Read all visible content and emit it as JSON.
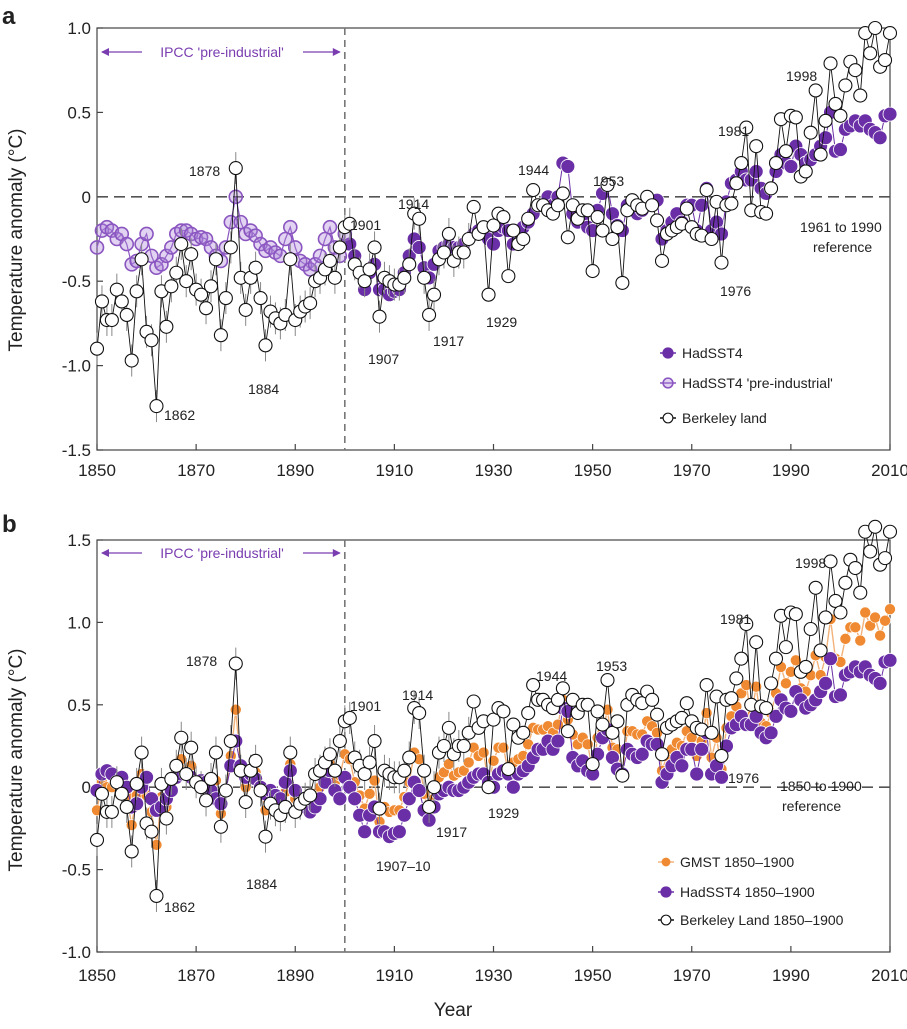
{
  "colors": {
    "hadsst": "#6a2fa6",
    "hadsst_pre": "#8a55c0",
    "berkeley": "#000000",
    "gmst": "#ef8a32",
    "ipcc": "#7a3db0"
  },
  "chart_data": [
    {
      "panel": "a",
      "type": "line",
      "xlabel": "",
      "ylabel": "Temperature anomaly (°C)",
      "xlim": [
        1850,
        2010
      ],
      "ylim": [
        -1.5,
        1.0
      ],
      "xticks": [
        "1850",
        "1870",
        "1890",
        "1910",
        "1930",
        "1950",
        "1970",
        "1990",
        "2010"
      ],
      "yticks": [
        "-1.5",
        "-1.0",
        "-0.5",
        "0",
        "0.5",
        "1.0"
      ],
      "grid": false,
      "legend_position": "bottom-right",
      "ipcc_label": "IPCC 'pre-industrial'",
      "reference_label": [
        "1961 to 1990",
        "reference"
      ],
      "annotations": [
        "1878",
        "1862",
        "1884",
        "1901",
        "1907",
        "1914",
        "1917",
        "1929",
        "1944",
        "1953",
        "1976",
        "1981",
        "1998"
      ],
      "series": [
        {
          "name": "HadSST4",
          "marker": "filled",
          "x_start": 1901,
          "values": [
            -0.28,
            -0.35,
            -0.45,
            -0.55,
            -0.45,
            -0.4,
            -0.55,
            -0.55,
            -0.58,
            -0.56,
            -0.55,
            -0.45,
            -0.35,
            -0.25,
            -0.3,
            -0.42,
            -0.48,
            -0.4,
            -0.32,
            -0.3,
            -0.28,
            -0.3,
            -0.3,
            -0.28,
            -0.25,
            -0.22,
            -0.2,
            -0.2,
            -0.25,
            -0.28,
            -0.2,
            -0.18,
            -0.2,
            -0.28,
            -0.2,
            -0.18,
            -0.15,
            -0.1,
            -0.05,
            -0.05,
            0.0,
            -0.05,
            0.0,
            0.2,
            0.18,
            -0.1,
            -0.15,
            -0.12,
            -0.18,
            -0.2,
            -0.08,
            0.02,
            0.07,
            -0.1,
            -0.17,
            -0.2,
            -0.05,
            -0.08,
            -0.1,
            -0.08,
            0.0,
            -0.02,
            -0.02,
            -0.25,
            -0.2,
            -0.15,
            -0.1,
            -0.15,
            -0.05,
            -0.05,
            -0.2,
            -0.05,
            0.05,
            -0.2,
            -0.15,
            -0.22,
            -0.03,
            0.08,
            0.1,
            0.15,
            0.1,
            0.1,
            0.15,
            0.05,
            0.02,
            0.05,
            0.15,
            0.25,
            0.2,
            0.18,
            0.3,
            0.25,
            0.2,
            0.22,
            0.25,
            0.3,
            0.35,
            0.5,
            0.27,
            0.28,
            0.4,
            0.42,
            0.45,
            0.42,
            0.45,
            0.4,
            0.38,
            0.35,
            0.48,
            0.49
          ]
        },
        {
          "name": "HadSST4 'pre-industrial'",
          "marker": "open",
          "x_start": 1850,
          "values": [
            -0.3,
            -0.2,
            -0.18,
            -0.2,
            -0.25,
            -0.22,
            -0.28,
            -0.4,
            -0.38,
            -0.28,
            -0.22,
            -0.35,
            -0.42,
            -0.4,
            -0.35,
            -0.3,
            -0.22,
            -0.2,
            -0.2,
            -0.22,
            -0.25,
            -0.24,
            -0.25,
            -0.3,
            -0.35,
            -0.38,
            -0.3,
            -0.15,
            0.0,
            -0.15,
            -0.22,
            -0.2,
            -0.23,
            -0.28,
            -0.32,
            -0.3,
            -0.33,
            -0.35,
            -0.25,
            -0.18,
            -0.3,
            -0.38,
            -0.4,
            -0.43,
            -0.4,
            -0.35,
            -0.25,
            -0.18,
            -0.3,
            -0.35,
            -0.22
          ]
        },
        {
          "name": "Berkeley land",
          "marker": "white",
          "x_start": 1850,
          "values": [
            -0.9,
            -0.62,
            -0.73,
            -0.73,
            -0.55,
            -0.62,
            -0.7,
            -0.97,
            -0.56,
            -0.37,
            -0.8,
            -0.85,
            -1.24,
            -0.56,
            -0.77,
            -0.53,
            -0.45,
            -0.28,
            -0.5,
            -0.34,
            -0.55,
            -0.58,
            -0.66,
            -0.53,
            -0.37,
            -0.82,
            -0.6,
            -0.3,
            0.17,
            -0.48,
            -0.67,
            -0.48,
            -0.42,
            -0.6,
            -0.88,
            -0.68,
            -0.72,
            -0.75,
            -0.7,
            -0.37,
            -0.73,
            -0.68,
            -0.65,
            -0.63,
            -0.5,
            -0.48,
            -0.43,
            -0.38,
            -0.48,
            -0.3,
            -0.18,
            -0.16,
            -0.4,
            -0.45,
            -0.5,
            -0.43,
            -0.3,
            -0.71,
            -0.48,
            -0.5,
            -0.52,
            -0.52,
            -0.48,
            -0.4,
            -0.1,
            -0.13,
            -0.48,
            -0.7,
            -0.58,
            -0.37,
            -0.33,
            -0.22,
            -0.38,
            -0.33,
            -0.33,
            -0.25,
            -0.06,
            -0.22,
            -0.18,
            -0.58,
            -0.17,
            -0.1,
            -0.12,
            -0.47,
            -0.2,
            -0.28,
            -0.25,
            -0.13,
            0.04,
            -0.05,
            -0.05,
            -0.08,
            -0.1,
            -0.05,
            0.02,
            -0.24,
            -0.05,
            -0.13,
            -0.08,
            -0.08,
            -0.44,
            -0.12,
            -0.2,
            0.07,
            -0.25,
            -0.18,
            -0.51,
            -0.08,
            -0.02,
            -0.05,
            -0.07,
            0.0,
            -0.05,
            -0.14,
            -0.38,
            -0.22,
            -0.2,
            -0.18,
            -0.16,
            -0.07,
            -0.18,
            -0.22,
            -0.23,
            0.04,
            -0.25,
            -0.03,
            -0.39,
            -0.05,
            -0.04,
            0.08,
            0.2,
            0.41,
            -0.08,
            0.3,
            -0.09,
            -0.1,
            0.05,
            0.2,
            0.46,
            0.27,
            0.48,
            0.47,
            0.12,
            0.15,
            0.38,
            0.63,
            0.25,
            0.45,
            0.79,
            0.55,
            0.48,
            0.66,
            0.8,
            0.75,
            0.6,
            0.97,
            0.85,
            1.0,
            0.77,
            0.81,
            0.97
          ]
        }
      ]
    },
    {
      "panel": "b",
      "type": "line",
      "xlabel": "Year",
      "ylabel": "Temperature anomaly (°C)",
      "xlim": [
        1850,
        2010
      ],
      "ylim": [
        -1.0,
        1.5
      ],
      "xticks": [
        "1850",
        "1870",
        "1890",
        "1910",
        "1930",
        "1950",
        "1970",
        "1990",
        "2010"
      ],
      "yticks": [
        "-1.0",
        "-0.5",
        "0",
        "0.5",
        "1.0",
        "1.5"
      ],
      "grid": false,
      "legend_position": "bottom-right",
      "ipcc_label": "IPCC 'pre-industrial'",
      "reference_label": [
        "1850 to 1900",
        "reference"
      ],
      "annotations": [
        "1878",
        "1862",
        "1884",
        "1901",
        "1907–10",
        "1914",
        "1917",
        "1929",
        "1944",
        "1953",
        "1976",
        "1981",
        "1998"
      ],
      "series": [
        {
          "name": "GMST 1850–1900",
          "marker": "orange",
          "x_start": 1850,
          "values": [
            -0.14,
            0.03,
            0.0,
            0.0,
            0.03,
            0.02,
            -0.05,
            -0.23,
            -0.05,
            0.08,
            -0.05,
            -0.15,
            -0.35,
            -0.06,
            -0.12,
            0.01,
            0.09,
            0.17,
            0.08,
            0.13,
            0.03,
            0.02,
            -0.01,
            0.01,
            0.04,
            -0.16,
            -0.02,
            0.19,
            0.47,
            0.12,
            0.0,
            0.09,
            0.09,
            -0.01,
            -0.14,
            -0.05,
            -0.09,
            -0.11,
            -0.03,
            0.14,
            -0.07,
            -0.1,
            -0.1,
            -0.11,
            -0.04,
            0.0,
            0.08,
            0.14,
            0.03,
            0.07,
            0.2,
            0.17,
            0.03,
            -0.05,
            -0.13,
            -0.04,
            0.04,
            -0.21,
            -0.12,
            -0.15,
            -0.14,
            -0.14,
            -0.06,
            0.03,
            0.21,
            0.17,
            -0.04,
            -0.17,
            -0.07,
            0.06,
            0.09,
            0.14,
            0.07,
            0.09,
            0.1,
            0.15,
            0.24,
            0.19,
            0.21,
            0.02,
            0.16,
            0.24,
            0.24,
            0.09,
            0.15,
            0.17,
            0.19,
            0.26,
            0.36,
            0.35,
            0.35,
            0.37,
            0.33,
            0.38,
            0.53,
            0.41,
            0.32,
            0.26,
            0.3,
            0.26,
            0.1,
            0.3,
            0.33,
            0.47,
            0.24,
            0.23,
            0.08,
            0.34,
            0.34,
            0.32,
            0.32,
            0.4,
            0.37,
            0.33,
            0.1,
            0.19,
            0.23,
            0.27,
            0.25,
            0.34,
            0.3,
            0.19,
            0.28,
            0.45,
            0.18,
            0.3,
            0.11,
            0.36,
            0.43,
            0.49,
            0.57,
            0.62,
            0.43,
            0.61,
            0.39,
            0.37,
            0.45,
            0.57,
            0.73,
            0.63,
            0.7,
            0.77,
            0.6,
            0.58,
            0.68,
            0.8,
            0.68,
            0.79,
            1.02,
            0.78,
            0.76,
            0.9,
            0.97,
            0.97,
            0.89,
            1.06,
            0.98,
            1.03,
            0.92,
            1.01,
            1.08
          ]
        },
        {
          "name": "HadSST4 1850–1900",
          "marker": "filled",
          "x_start": 1850,
          "values": [
            -0.02,
            0.08,
            0.1,
            0.08,
            0.03,
            0.06,
            0.0,
            -0.12,
            -0.1,
            0.0,
            0.06,
            -0.07,
            -0.14,
            -0.12,
            -0.07,
            -0.02,
            0.06,
            0.08,
            0.08,
            0.06,
            0.03,
            0.04,
            0.03,
            -0.02,
            -0.07,
            -0.1,
            -0.02,
            0.13,
            0.28,
            0.13,
            0.06,
            0.08,
            0.05,
            0.0,
            -0.04,
            -0.02,
            -0.05,
            -0.07,
            0.03,
            0.1,
            -0.02,
            -0.1,
            -0.12,
            -0.15,
            -0.12,
            -0.07,
            0.03,
            0.1,
            -0.02,
            -0.07,
            0.06,
            0.0,
            -0.07,
            -0.17,
            -0.27,
            -0.17,
            -0.12,
            -0.27,
            -0.27,
            -0.3,
            -0.28,
            -0.27,
            -0.17,
            -0.07,
            0.03,
            -0.02,
            -0.14,
            -0.2,
            -0.12,
            -0.04,
            -0.02,
            0.0,
            -0.02,
            -0.02,
            0.0,
            0.03,
            0.06,
            0.08,
            0.08,
            0.03,
            0.0,
            0.08,
            0.1,
            0.08,
            0.0,
            0.08,
            0.1,
            0.13,
            0.18,
            0.23,
            0.23,
            0.28,
            0.23,
            0.28,
            0.48,
            0.46,
            0.18,
            0.13,
            0.16,
            0.1,
            0.08,
            0.2,
            0.3,
            0.35,
            0.18,
            0.11,
            0.08,
            0.23,
            0.2,
            0.18,
            0.2,
            0.28,
            0.26,
            0.26,
            0.03,
            0.08,
            0.13,
            0.18,
            0.13,
            0.23,
            0.23,
            0.08,
            0.23,
            0.33,
            0.08,
            0.13,
            0.06,
            0.25,
            0.36,
            0.38,
            0.43,
            0.38,
            0.38,
            0.43,
            0.33,
            0.3,
            0.33,
            0.43,
            0.53,
            0.48,
            0.46,
            0.58,
            0.53,
            0.48,
            0.5,
            0.53,
            0.58,
            0.63,
            0.78,
            0.55,
            0.56,
            0.68,
            0.7,
            0.73,
            0.7,
            0.73,
            0.68,
            0.66,
            0.63,
            0.76,
            0.77
          ]
        },
        {
          "name": "Berkeley Land 1850–1900",
          "marker": "white",
          "x_start": 1850,
          "values": [
            -0.32,
            -0.04,
            -0.15,
            -0.15,
            0.03,
            -0.04,
            -0.12,
            -0.39,
            0.02,
            0.21,
            -0.22,
            -0.27,
            -0.66,
            0.02,
            -0.19,
            0.05,
            0.13,
            0.3,
            0.08,
            0.24,
            0.03,
            0.0,
            -0.08,
            0.05,
            0.21,
            -0.24,
            -0.02,
            0.28,
            0.75,
            0.1,
            -0.09,
            0.1,
            0.16,
            -0.02,
            -0.3,
            -0.1,
            -0.14,
            -0.17,
            -0.12,
            0.21,
            -0.15,
            -0.1,
            -0.07,
            -0.05,
            0.08,
            0.1,
            0.15,
            0.2,
            0.1,
            0.28,
            0.4,
            0.42,
            0.18,
            0.13,
            0.08,
            0.15,
            0.28,
            -0.13,
            0.1,
            0.08,
            0.06,
            0.06,
            0.1,
            0.18,
            0.48,
            0.45,
            0.1,
            -0.12,
            0.0,
            0.21,
            0.25,
            0.36,
            0.2,
            0.25,
            0.25,
            0.33,
            0.52,
            0.36,
            0.4,
            0.0,
            0.41,
            0.48,
            0.46,
            0.11,
            0.38,
            0.3,
            0.33,
            0.45,
            0.62,
            0.53,
            0.53,
            0.5,
            0.48,
            0.53,
            0.6,
            0.34,
            0.53,
            0.45,
            0.5,
            0.5,
            0.14,
            0.46,
            0.38,
            0.65,
            0.33,
            0.4,
            0.07,
            0.5,
            0.56,
            0.53,
            0.51,
            0.58,
            0.53,
            0.44,
            0.2,
            0.36,
            0.38,
            0.4,
            0.42,
            0.51,
            0.4,
            0.36,
            0.35,
            0.62,
            0.33,
            0.55,
            0.19,
            0.53,
            0.54,
            0.66,
            0.78,
            0.99,
            0.5,
            0.88,
            0.49,
            0.48,
            0.63,
            0.78,
            1.04,
            0.85,
            1.06,
            1.05,
            0.7,
            0.73,
            0.96,
            1.21,
            0.83,
            1.03,
            1.37,
            1.13,
            1.06,
            1.24,
            1.38,
            1.33,
            1.18,
            1.55,
            1.43,
            1.58,
            1.35,
            1.39,
            1.55
          ]
        }
      ]
    }
  ]
}
